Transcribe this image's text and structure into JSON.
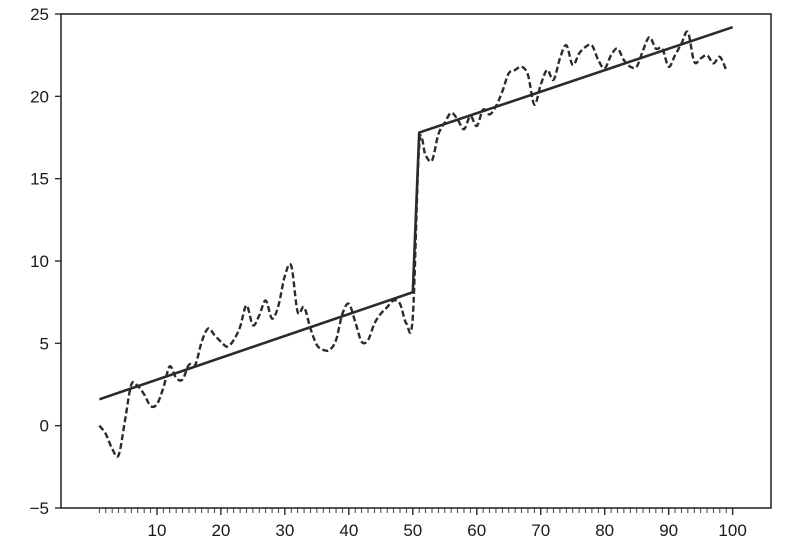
{
  "chart_data": {
    "type": "line",
    "title": "",
    "xlabel": "",
    "ylabel": "",
    "xlim": [
      -5,
      106
    ],
    "ylim": [
      -5,
      25
    ],
    "x_ticks": [
      10,
      20,
      30,
      40,
      50,
      60,
      70,
      80,
      90,
      100
    ],
    "y_ticks": [
      -5,
      0,
      5,
      10,
      15,
      20,
      25
    ],
    "x_tick_labels": [
      "10",
      "20",
      "30",
      "40",
      "50",
      "60",
      "70",
      "80",
      "90",
      "100"
    ],
    "y_tick_labels": [
      "-5",
      "0",
      "5",
      "10",
      "15",
      "20",
      "25"
    ],
    "minor_x_ticks_every": 1,
    "grid": false,
    "legend": "none",
    "series": [
      {
        "style": "solid",
        "color": "#2b2b2b",
        "points": [
          [
            1,
            1.6
          ],
          [
            50,
            8.1
          ],
          [
            51,
            17.8
          ],
          [
            100,
            24.2
          ]
        ]
      },
      {
        "style": "dashed",
        "color": "#2b2b2b",
        "points": [
          [
            1,
            0.0
          ],
          [
            2,
            -0.5
          ],
          [
            3,
            -1.4
          ],
          [
            4,
            -1.8
          ],
          [
            5,
            0.3
          ],
          [
            6,
            2.5
          ],
          [
            7,
            2.4
          ],
          [
            8,
            1.9
          ],
          [
            9,
            1.2
          ],
          [
            10,
            1.3
          ],
          [
            11,
            2.3
          ],
          [
            12,
            3.6
          ],
          [
            13,
            2.9
          ],
          [
            14,
            2.8
          ],
          [
            15,
            3.7
          ],
          [
            16,
            3.7
          ],
          [
            17,
            5.1
          ],
          [
            18,
            5.9
          ],
          [
            19,
            5.5
          ],
          [
            20,
            5.1
          ],
          [
            21,
            4.8
          ],
          [
            22,
            5.2
          ],
          [
            23,
            6.0
          ],
          [
            24,
            7.3
          ],
          [
            25,
            6.1
          ],
          [
            26,
            6.7
          ],
          [
            27,
            7.6
          ],
          [
            28,
            6.5
          ],
          [
            29,
            7.3
          ],
          [
            30,
            9.1
          ],
          [
            31,
            9.7
          ],
          [
            32,
            6.9
          ],
          [
            33,
            7.2
          ],
          [
            34,
            5.9
          ],
          [
            35,
            4.9
          ],
          [
            36,
            4.6
          ],
          [
            37,
            4.6
          ],
          [
            38,
            5.2
          ],
          [
            39,
            6.8
          ],
          [
            40,
            7.4
          ],
          [
            41,
            6.3
          ],
          [
            42,
            5.1
          ],
          [
            43,
            5.2
          ],
          [
            44,
            6.2
          ],
          [
            45,
            6.8
          ],
          [
            46,
            7.2
          ],
          [
            47,
            7.6
          ],
          [
            48,
            7.4
          ],
          [
            49,
            6.2
          ],
          [
            50,
            6.6
          ],
          [
            51,
            17.0
          ],
          [
            52,
            16.4
          ],
          [
            53,
            16.1
          ],
          [
            54,
            17.7
          ],
          [
            55,
            18.4
          ],
          [
            56,
            19.0
          ],
          [
            57,
            18.6
          ],
          [
            58,
            18.0
          ],
          [
            59,
            18.8
          ],
          [
            60,
            18.2
          ],
          [
            61,
            19.2
          ],
          [
            62,
            18.9
          ],
          [
            63,
            19.4
          ],
          [
            64,
            20.3
          ],
          [
            65,
            21.4
          ],
          [
            66,
            21.6
          ],
          [
            67,
            21.8
          ],
          [
            68,
            21.3
          ],
          [
            69,
            19.5
          ],
          [
            70,
            20.7
          ],
          [
            71,
            21.6
          ],
          [
            72,
            21.0
          ],
          [
            73,
            22.3
          ],
          [
            74,
            23.1
          ],
          [
            75,
            21.9
          ],
          [
            76,
            22.6
          ],
          [
            77,
            23.0
          ],
          [
            78,
            23.1
          ],
          [
            79,
            22.2
          ],
          [
            80,
            21.7
          ],
          [
            81,
            22.5
          ],
          [
            82,
            22.9
          ],
          [
            83,
            22.2
          ],
          [
            84,
            21.8
          ],
          [
            85,
            21.8
          ],
          [
            86,
            22.8
          ],
          [
            87,
            23.6
          ],
          [
            88,
            22.9
          ],
          [
            89,
            22.9
          ],
          [
            90,
            21.8
          ],
          [
            91,
            22.5
          ],
          [
            92,
            23.2
          ],
          [
            93,
            23.9
          ],
          [
            94,
            22.1
          ],
          [
            95,
            22.3
          ],
          [
            96,
            22.5
          ],
          [
            97,
            22.0
          ],
          [
            98,
            22.4
          ],
          [
            99,
            21.6
          ]
        ]
      }
    ]
  }
}
